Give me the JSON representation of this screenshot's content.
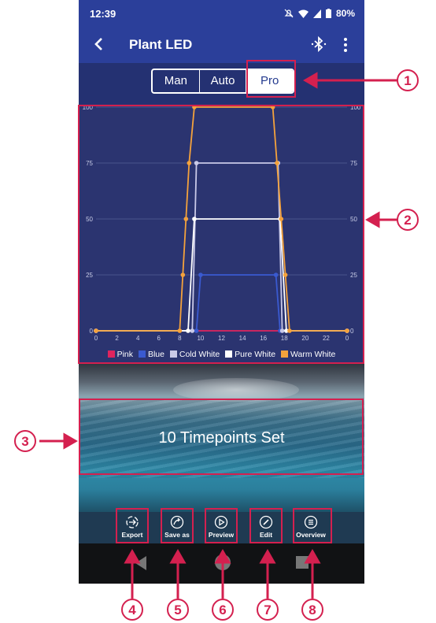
{
  "status": {
    "time": "12:39",
    "battery": "80%"
  },
  "appbar": {
    "title": "Plant LED"
  },
  "modes": {
    "items": [
      "Man",
      "Auto",
      "Pro"
    ],
    "selected": "Pro"
  },
  "chart_data": {
    "type": "line",
    "x": [
      0,
      8,
      8.5,
      9,
      9.5,
      10,
      17.5,
      18,
      18.5,
      19,
      24
    ],
    "x_ticks": [
      "0",
      "2",
      "4",
      "6",
      "8",
      "10",
      "12",
      "14",
      "16",
      "18",
      "20",
      "22",
      "0"
    ],
    "y_ticks": [
      "0",
      "25",
      "50",
      "75",
      "100"
    ],
    "ylim": [
      0,
      100
    ],
    "grid": true,
    "legend_position": "bottom",
    "series": [
      {
        "name": "Pink",
        "color": "#e0245e",
        "points": [
          [
            0,
            0
          ],
          [
            24,
            0
          ]
        ]
      },
      {
        "name": "Blue",
        "color": "#3a5ad0",
        "points": [
          [
            0,
            0
          ],
          [
            9.6,
            0
          ],
          [
            10,
            25
          ],
          [
            17.2,
            25
          ],
          [
            17.6,
            0
          ],
          [
            24,
            0
          ]
        ]
      },
      {
        "name": "Cold White",
        "color": "#c9c9e8",
        "points": [
          [
            0,
            0
          ],
          [
            9.2,
            0
          ],
          [
            9.6,
            75
          ],
          [
            17.4,
            75
          ],
          [
            17.8,
            0
          ],
          [
            24,
            0
          ]
        ]
      },
      {
        "name": "Pure White",
        "color": "#ffffff",
        "points": [
          [
            0,
            0
          ],
          [
            8.8,
            0
          ],
          [
            9.4,
            50
          ],
          [
            17.6,
            50
          ],
          [
            18.2,
            0
          ],
          [
            24,
            0
          ]
        ]
      },
      {
        "name": "Warm White",
        "color": "#f4a23c",
        "points": [
          [
            0,
            0
          ],
          [
            8,
            0
          ],
          [
            8.3,
            25
          ],
          [
            8.6,
            50
          ],
          [
            8.9,
            75
          ],
          [
            9.4,
            100
          ],
          [
            16.9,
            100
          ],
          [
            17.3,
            75
          ],
          [
            17.7,
            50
          ],
          [
            18.1,
            25
          ],
          [
            18.5,
            0
          ],
          [
            24,
            0
          ]
        ]
      }
    ]
  },
  "banner": {
    "text": "10 Timepoints Set"
  },
  "toolbar": {
    "export": "Export",
    "save_as": "Save as",
    "preview": "Preview",
    "edit": "Edit",
    "overview": "Overview"
  },
  "callouts": [
    "1",
    "2",
    "3",
    "4",
    "5",
    "6",
    "7",
    "8"
  ],
  "colors": {
    "highlight": "#d4204f",
    "appbar": "#2b3f9a",
    "chart_bg": "#2b3470"
  }
}
